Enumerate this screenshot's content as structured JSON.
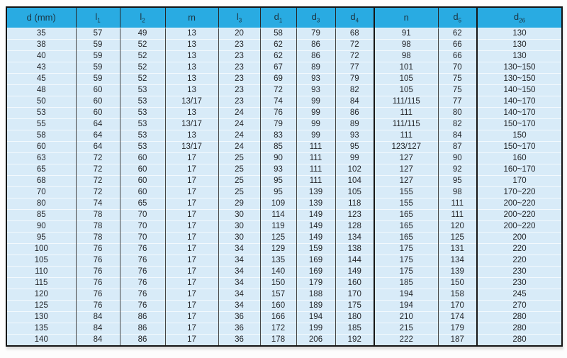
{
  "colors": {
    "header_bg": "#29abe2",
    "row_bg": "#d8ebf8",
    "grid_line": "#454545",
    "border": "#141414",
    "text": "#24262a"
  },
  "table": {
    "columns": [
      {
        "id": "d-mm",
        "base": "d (mm)",
        "sub": ""
      },
      {
        "id": "l1",
        "base": "l",
        "sub": "1"
      },
      {
        "id": "l2",
        "base": "l",
        "sub": "2"
      },
      {
        "id": "m",
        "base": "m",
        "sub": ""
      },
      {
        "id": "l3",
        "base": "l",
        "sub": "3"
      },
      {
        "id": "d1",
        "base": "d",
        "sub": "1"
      },
      {
        "id": "d3",
        "base": "d",
        "sub": "3"
      },
      {
        "id": "d4",
        "base": "d",
        "sub": "4"
      },
      {
        "id": "n",
        "base": "n",
        "sub": ""
      },
      {
        "id": "d5",
        "base": "d",
        "sub": "5"
      },
      {
        "id": "d26",
        "base": "d",
        "sub": "26"
      }
    ],
    "rows": [
      [
        "35",
        "57",
        "49",
        "13",
        "20",
        "58",
        "79",
        "68",
        "91",
        "62",
        "130"
      ],
      [
        "38",
        "59",
        "52",
        "13",
        "23",
        "62",
        "86",
        "72",
        "98",
        "66",
        "130"
      ],
      [
        "40",
        "59",
        "52",
        "13",
        "23",
        "62",
        "86",
        "72",
        "98",
        "66",
        "130"
      ],
      [
        "43",
        "59",
        "52",
        "13",
        "23",
        "67",
        "89",
        "77",
        "101",
        "70",
        "130~150"
      ],
      [
        "45",
        "59",
        "52",
        "13",
        "23",
        "69",
        "93",
        "79",
        "105",
        "75",
        "130~150"
      ],
      [
        "48",
        "60",
        "53",
        "13",
        "23",
        "72",
        "93",
        "82",
        "105",
        "75",
        "140~150"
      ],
      [
        "50",
        "60",
        "53",
        "13/17",
        "23",
        "74",
        "99",
        "84",
        "111/115",
        "77",
        "140~170"
      ],
      [
        "53",
        "60",
        "53",
        "13",
        "24",
        "76",
        "99",
        "86",
        "111",
        "80",
        "140~170"
      ],
      [
        "55",
        "64",
        "53",
        "13/17",
        "24",
        "79",
        "99",
        "89",
        "111/115",
        "82",
        "150~170"
      ],
      [
        "58",
        "64",
        "53",
        "13",
        "24",
        "83",
        "99",
        "93",
        "111",
        "84",
        "150"
      ],
      [
        "60",
        "64",
        "53",
        "13/17",
        "24",
        "85",
        "111",
        "95",
        "123/127",
        "87",
        "150~170"
      ],
      [
        "63",
        "72",
        "60",
        "17",
        "25",
        "90",
        "111",
        "99",
        "127",
        "90",
        "160"
      ],
      [
        "65",
        "72",
        "60",
        "17",
        "25",
        "93",
        "111",
        "102",
        "127",
        "92",
        "160~170"
      ],
      [
        "68",
        "72",
        "60",
        "17",
        "25",
        "95",
        "111",
        "104",
        "127",
        "95",
        "170"
      ],
      [
        "70",
        "72",
        "60",
        "17",
        "25",
        "95",
        "139",
        "105",
        "155",
        "98",
        "170~220"
      ],
      [
        "80",
        "74",
        "65",
        "17",
        "29",
        "109",
        "139",
        "118",
        "155",
        "111",
        "200~220"
      ],
      [
        "85",
        "78",
        "70",
        "17",
        "30",
        "114",
        "149",
        "123",
        "165",
        "111",
        "200~220"
      ],
      [
        "90",
        "78",
        "70",
        "17",
        "30",
        "119",
        "149",
        "128",
        "165",
        "120",
        "200~220"
      ],
      [
        "95",
        "78",
        "70",
        "17",
        "30",
        "125",
        "149",
        "134",
        "165",
        "125",
        "200"
      ],
      [
        "100",
        "76",
        "76",
        "17",
        "34",
        "129",
        "159",
        "138",
        "175",
        "131",
        "220"
      ],
      [
        "105",
        "76",
        "76",
        "17",
        "34",
        "135",
        "169",
        "144",
        "175",
        "134",
        "220"
      ],
      [
        "110",
        "76",
        "76",
        "17",
        "34",
        "140",
        "169",
        "149",
        "175",
        "139",
        "230"
      ],
      [
        "115",
        "76",
        "76",
        "17",
        "34",
        "150",
        "179",
        "160",
        "185",
        "150",
        "230"
      ],
      [
        "120",
        "76",
        "76",
        "17",
        "34",
        "157",
        "188",
        "170",
        "194",
        "158",
        "245"
      ],
      [
        "125",
        "76",
        "76",
        "17",
        "34",
        "160",
        "189",
        "175",
        "194",
        "170",
        "270"
      ],
      [
        "130",
        "84",
        "86",
        "17",
        "36",
        "166",
        "194",
        "180",
        "210",
        "174",
        "280"
      ],
      [
        "135",
        "84",
        "86",
        "17",
        "36",
        "172",
        "199",
        "185",
        "215",
        "179",
        "280"
      ],
      [
        "140",
        "84",
        "86",
        "17",
        "36",
        "178",
        "206",
        "192",
        "222",
        "187",
        "280"
      ]
    ]
  }
}
